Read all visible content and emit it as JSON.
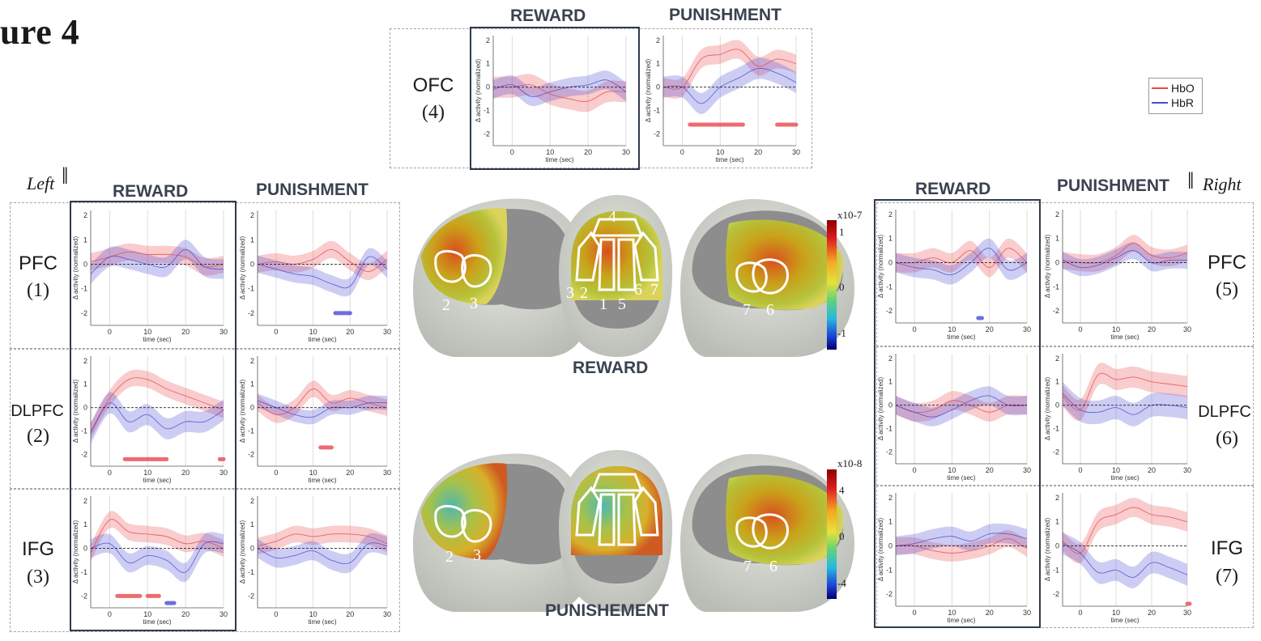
{
  "figure": {
    "title": "ure 4",
    "left_label": "Left",
    "right_label": "Right"
  },
  "headers": {
    "ofc_reward": "REWARD",
    "ofc_punishment": "PUNISHMENT",
    "left_reward": "REWARD",
    "left_punishment": "PUNISHMENT",
    "right_reward": "REWARD",
    "right_punishment": "PUNISHMENT"
  },
  "regions": {
    "ofc": {
      "name": "OFC",
      "num": "(4)"
    },
    "pfc_left": {
      "name": "PFC",
      "num": "(1)"
    },
    "dlpfc_left": {
      "name": "DLPFC",
      "num": "(2)"
    },
    "ifg_left": {
      "name": "IFG",
      "num": "(3)"
    },
    "pfc_right": {
      "name": "PFC",
      "num": "(5)"
    },
    "dlpfc_right": {
      "name": "DLPFC",
      "num": "(6)"
    },
    "ifg_right": {
      "name": "IFG",
      "num": "(7)"
    }
  },
  "legend": {
    "hbo": "HbO",
    "hbr": "HbR",
    "hbo_color": "#e8474d",
    "hbr_color": "#4a4ad6"
  },
  "brain": {
    "reward_label": "REWARD",
    "punishment_label": "PUNISHEMENT",
    "reward_scale": {
      "exponent": "x10-7",
      "ticks": [
        "1",
        "0",
        "-1"
      ]
    },
    "punishment_scale": {
      "exponent": "x10-8",
      "ticks": [
        "4",
        "0",
        "-4"
      ]
    },
    "reward_numbers": {
      "lateral_left": [
        "2",
        "3"
      ],
      "top": [
        "4",
        "3",
        "2",
        "1",
        "5",
        "6",
        "7"
      ],
      "lateral_right": [
        "7",
        "6"
      ]
    },
    "punishment_numbers": {
      "lateral_left": [
        "2",
        "3"
      ],
      "lateral_right": [
        "7",
        "6"
      ]
    }
  },
  "plot_axis": {
    "ylabel": "Δ activity (normalized)",
    "xlabel": "time (sec)",
    "xticks": [
      "0",
      "10",
      "20",
      "30"
    ],
    "yticks": [
      "2",
      "1",
      "0",
      "-1",
      "-2"
    ]
  },
  "chart_data": [
    {
      "id": "ofc_reward",
      "type": "line",
      "xlim": [
        -5,
        30
      ],
      "ylim": [
        -2.5,
        2.2
      ],
      "series": [
        {
          "name": "HbO",
          "x": [
            -5,
            0,
            5,
            10,
            15,
            20,
            25,
            30
          ],
          "y": [
            0.0,
            0.0,
            0.1,
            -0.3,
            -0.5,
            -0.6,
            -0.2,
            -0.2
          ],
          "sd": 0.45
        },
        {
          "name": "HbR",
          "x": [
            -5,
            0,
            5,
            10,
            15,
            20,
            25,
            30
          ],
          "y": [
            -0.1,
            0.1,
            -0.4,
            -0.2,
            0.0,
            0.1,
            0.3,
            -0.2
          ],
          "sd": 0.4
        }
      ],
      "sig": []
    },
    {
      "id": "ofc_punishment",
      "type": "line",
      "xlim": [
        -5,
        30
      ],
      "ylim": [
        -2.5,
        2.2
      ],
      "series": [
        {
          "name": "HbO",
          "x": [
            -5,
            0,
            5,
            10,
            15,
            20,
            25,
            30
          ],
          "y": [
            0.0,
            0.0,
            1.2,
            1.4,
            1.6,
            0.9,
            1.2,
            1.0
          ],
          "sd": 0.4
        },
        {
          "name": "HbR",
          "x": [
            -5,
            0,
            5,
            10,
            15,
            20,
            25,
            30
          ],
          "y": [
            0.0,
            0.0,
            -0.7,
            0.0,
            0.4,
            0.8,
            0.6,
            0.2
          ],
          "sd": 0.45
        }
      ],
      "sig": [
        {
          "series": "HbO",
          "x0": 2,
          "x1": 16,
          "y": -1.6
        },
        {
          "series": "HbO",
          "x0": 25,
          "x1": 30,
          "y": -1.6
        }
      ]
    },
    {
      "id": "pfc_left_reward",
      "type": "line",
      "xlim": [
        -5,
        30
      ],
      "ylim": [
        -2.5,
        2.2
      ],
      "series": [
        {
          "name": "HbO",
          "x": [
            -5,
            0,
            5,
            10,
            15,
            20,
            25,
            30
          ],
          "y": [
            0.1,
            0.3,
            0.5,
            0.4,
            0.4,
            0.3,
            -0.1,
            0.0
          ],
          "sd": 0.35
        },
        {
          "name": "HbR",
          "x": [
            -5,
            0,
            5,
            10,
            15,
            20,
            25,
            30
          ],
          "y": [
            -0.4,
            0.3,
            0.2,
            0.0,
            -0.1,
            0.6,
            -0.1,
            -0.2
          ],
          "sd": 0.4
        }
      ],
      "sig": []
    },
    {
      "id": "pfc_left_punishment",
      "type": "line",
      "xlim": [
        -5,
        30
      ],
      "ylim": [
        -2.5,
        2.2
      ],
      "series": [
        {
          "name": "HbO",
          "x": [
            -5,
            0,
            5,
            10,
            15,
            20,
            25,
            30
          ],
          "y": [
            0.0,
            0.1,
            0.0,
            0.2,
            0.6,
            0.1,
            -0.3,
            0.2
          ],
          "sd": 0.35
        },
        {
          "name": "HbR",
          "x": [
            -5,
            0,
            5,
            10,
            15,
            20,
            25,
            30
          ],
          "y": [
            0.0,
            -0.2,
            -0.4,
            -0.5,
            -0.8,
            -0.9,
            0.3,
            -0.2
          ],
          "sd": 0.35
        }
      ],
      "sig": [
        {
          "series": "HbR",
          "x0": 16,
          "x1": 20,
          "y": -2.0
        }
      ]
    },
    {
      "id": "dlpfc_left_reward",
      "type": "line",
      "xlim": [
        -5,
        30
      ],
      "ylim": [
        -2.5,
        2.2
      ],
      "series": [
        {
          "name": "HbO",
          "x": [
            -5,
            0,
            5,
            10,
            15,
            20,
            25,
            30
          ],
          "y": [
            -1.0,
            0.4,
            1.2,
            1.2,
            0.8,
            0.5,
            0.2,
            -0.1
          ],
          "sd": 0.35
        },
        {
          "name": "HbR",
          "x": [
            -5,
            0,
            5,
            10,
            15,
            20,
            25,
            30
          ],
          "y": [
            -1.1,
            0.2,
            -0.6,
            -0.3,
            -0.9,
            -0.6,
            -0.6,
            -0.1
          ],
          "sd": 0.45
        }
      ],
      "sig": [
        {
          "series": "HbO",
          "x0": 4,
          "x1": 15,
          "y": -2.2
        },
        {
          "series": "HbO",
          "x0": 29,
          "x1": 30,
          "y": -2.2
        }
      ]
    },
    {
      "id": "dlpfc_left_punishment",
      "type": "line",
      "xlim": [
        -5,
        30
      ],
      "ylim": [
        -2.5,
        2.2
      ],
      "series": [
        {
          "name": "HbO",
          "x": [
            -5,
            0,
            5,
            10,
            15,
            20,
            25,
            30
          ],
          "y": [
            0.2,
            -0.3,
            0.0,
            0.8,
            0.2,
            0.4,
            0.2,
            0.0
          ],
          "sd": 0.35
        },
        {
          "name": "HbR",
          "x": [
            -5,
            0,
            5,
            10,
            15,
            20,
            25,
            30
          ],
          "y": [
            0.3,
            0.0,
            -0.3,
            -0.4,
            0.0,
            0.0,
            0.2,
            0.2
          ],
          "sd": 0.3
        }
      ],
      "sig": [
        {
          "series": "HbO",
          "x0": 12,
          "x1": 15,
          "y": -1.7
        }
      ]
    },
    {
      "id": "ifg_left_reward",
      "type": "line",
      "xlim": [
        -5,
        30
      ],
      "ylim": [
        -2.5,
        2.2
      ],
      "series": [
        {
          "name": "HbO",
          "x": [
            -5,
            0,
            5,
            10,
            15,
            20,
            25,
            30
          ],
          "y": [
            -0.2,
            1.2,
            0.7,
            0.6,
            0.5,
            0.2,
            0.3,
            0.0
          ],
          "sd": 0.35
        },
        {
          "name": "HbR",
          "x": [
            -5,
            0,
            5,
            10,
            15,
            20,
            25,
            30
          ],
          "y": [
            0.0,
            0.2,
            -0.6,
            -0.3,
            -0.5,
            -1.0,
            0.2,
            0.2
          ],
          "sd": 0.4
        }
      ],
      "sig": [
        {
          "series": "HbO",
          "x0": 2,
          "x1": 8,
          "y": -2.0
        },
        {
          "series": "HbO",
          "x0": 10,
          "x1": 13,
          "y": -2.0
        },
        {
          "series": "HbR",
          "x0": 15,
          "x1": 17,
          "y": -2.3
        }
      ]
    },
    {
      "id": "ifg_left_punishment",
      "type": "line",
      "xlim": [
        -5,
        30
      ],
      "ylim": [
        -2.5,
        2.2
      ],
      "series": [
        {
          "name": "HbO",
          "x": [
            -5,
            0,
            5,
            10,
            15,
            20,
            25,
            30
          ],
          "y": [
            0.1,
            0.3,
            0.6,
            0.5,
            0.6,
            0.6,
            0.5,
            0.2
          ],
          "sd": 0.35
        },
        {
          "name": "HbR",
          "x": [
            -5,
            0,
            5,
            10,
            15,
            20,
            25,
            30
          ],
          "y": [
            0.0,
            -0.4,
            -0.3,
            -0.1,
            -0.5,
            -0.6,
            0.2,
            0.1
          ],
          "sd": 0.4
        }
      ],
      "sig": []
    },
    {
      "id": "pfc_right_reward",
      "type": "line",
      "xlim": [
        -5,
        30
      ],
      "ylim": [
        -2.5,
        2.2
      ],
      "series": [
        {
          "name": "HbO",
          "x": [
            -5,
            0,
            5,
            10,
            15,
            20,
            25,
            30
          ],
          "y": [
            0.0,
            0.0,
            0.2,
            0.0,
            0.5,
            -0.2,
            0.6,
            0.0
          ],
          "sd": 0.4
        },
        {
          "name": "HbR",
          "x": [
            -5,
            0,
            5,
            10,
            15,
            20,
            25,
            30
          ],
          "y": [
            0.0,
            -0.2,
            -0.3,
            -0.5,
            0.0,
            0.6,
            -0.3,
            0.0
          ],
          "sd": 0.4
        }
      ],
      "sig": [
        {
          "series": "HbR",
          "x0": 17,
          "x1": 18,
          "y": -2.3
        }
      ]
    },
    {
      "id": "pfc_right_punishment",
      "type": "line",
      "xlim": [
        -5,
        30
      ],
      "ylim": [
        -2.5,
        2.2
      ],
      "series": [
        {
          "name": "HbO",
          "x": [
            -5,
            0,
            5,
            10,
            15,
            20,
            25,
            30
          ],
          "y": [
            0.1,
            0.0,
            0.0,
            0.3,
            0.8,
            0.3,
            0.2,
            0.4
          ],
          "sd": 0.35
        },
        {
          "name": "HbR",
          "x": [
            -5,
            0,
            5,
            10,
            15,
            20,
            25,
            30
          ],
          "y": [
            0.1,
            -0.2,
            -0.1,
            0.2,
            0.5,
            0.0,
            0.1,
            0.1
          ],
          "sd": 0.35
        }
      ],
      "sig": []
    },
    {
      "id": "dlpfc_right_reward",
      "type": "line",
      "xlim": [
        -5,
        30
      ],
      "ylim": [
        -2.5,
        2.2
      ],
      "series": [
        {
          "name": "HbO",
          "x": [
            -5,
            0,
            5,
            10,
            15,
            20,
            25,
            30
          ],
          "y": [
            0.0,
            -0.3,
            -0.2,
            0.2,
            0.0,
            -0.3,
            0.0,
            0.0
          ],
          "sd": 0.4
        },
        {
          "name": "HbR",
          "x": [
            -5,
            0,
            5,
            10,
            15,
            20,
            25,
            30
          ],
          "y": [
            0.0,
            -0.3,
            -0.5,
            -0.2,
            0.2,
            0.4,
            0.0,
            0.0
          ],
          "sd": 0.4
        }
      ],
      "sig": []
    },
    {
      "id": "dlpfc_right_punishment",
      "type": "line",
      "xlim": [
        -5,
        30
      ],
      "ylim": [
        -2.5,
        2.2
      ],
      "series": [
        {
          "name": "HbO",
          "x": [
            -5,
            0,
            5,
            10,
            15,
            20,
            25,
            30
          ],
          "y": [
            0.4,
            -0.2,
            1.3,
            1.1,
            1.2,
            1.0,
            0.9,
            0.8
          ],
          "sd": 0.45
        },
        {
          "name": "HbR",
          "x": [
            -5,
            0,
            5,
            10,
            15,
            20,
            25,
            30
          ],
          "y": [
            0.5,
            -0.2,
            -0.3,
            -0.1,
            -0.4,
            0.0,
            0.0,
            -0.1
          ],
          "sd": 0.5
        }
      ],
      "sig": []
    },
    {
      "id": "ifg_right_reward",
      "type": "line",
      "xlim": [
        -5,
        30
      ],
      "ylim": [
        -2.5,
        2.2
      ],
      "series": [
        {
          "name": "HbO",
          "x": [
            -5,
            0,
            5,
            10,
            15,
            20,
            25,
            30
          ],
          "y": [
            0.0,
            0.0,
            -0.2,
            -0.3,
            -0.2,
            0.0,
            0.3,
            -0.1
          ],
          "sd": 0.35
        },
        {
          "name": "HbR",
          "x": [
            -5,
            0,
            5,
            10,
            15,
            20,
            25,
            30
          ],
          "y": [
            0.0,
            0.1,
            0.3,
            0.4,
            0.2,
            0.5,
            0.5,
            0.3
          ],
          "sd": 0.4
        }
      ],
      "sig": []
    },
    {
      "id": "ifg_right_punishment",
      "type": "line",
      "xlim": [
        -5,
        30
      ],
      "ylim": [
        -2.5,
        2.2
      ],
      "series": [
        {
          "name": "HbO",
          "x": [
            -5,
            0,
            5,
            10,
            15,
            20,
            25,
            30
          ],
          "y": [
            0.2,
            -0.3,
            1.0,
            1.3,
            1.6,
            1.3,
            1.2,
            1.0
          ],
          "sd": 0.4
        },
        {
          "name": "HbR",
          "x": [
            -5,
            0,
            5,
            10,
            15,
            20,
            25,
            30
          ],
          "y": [
            0.1,
            -0.3,
            -1.1,
            -1.0,
            -1.3,
            -0.7,
            -0.9,
            -1.2
          ],
          "sd": 0.45
        }
      ],
      "sig": [
        {
          "series": "HbO",
          "x0": 30,
          "x1": 30,
          "y": -2.4
        }
      ]
    }
  ]
}
